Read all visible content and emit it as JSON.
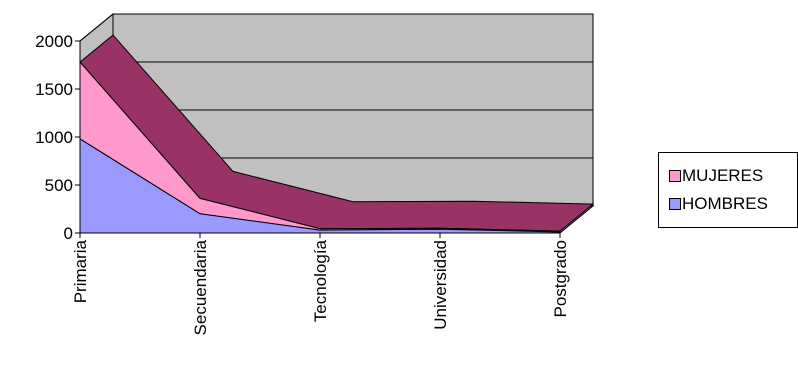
{
  "chart_data": {
    "type": "area",
    "style": "3d-stacked-area",
    "categories": [
      "Primaria",
      "Secuendaria",
      "Tecnología",
      "Universidad",
      "Postgrado"
    ],
    "series": [
      {
        "name": "HOMBRES",
        "values": [
          980,
          200,
          30,
          40,
          10
        ],
        "color": "#9999ff"
      },
      {
        "name": "MUJERES",
        "values": [
          800,
          160,
          15,
          10,
          10
        ],
        "color": "#ff99cc"
      }
    ],
    "ylim": [
      0,
      2000
    ],
    "yticks": [
      0,
      500,
      1000,
      1500,
      2000
    ],
    "ytick_labels": [
      "0",
      "500",
      "1000",
      "1500",
      "2000"
    ],
    "grid": true,
    "legend_position": "right",
    "colors": {
      "wall": "#c0c0c0",
      "floor": "#808080",
      "top_face": "#993366",
      "mujeres": "#ff99cc",
      "hombres": "#9999ff"
    }
  },
  "legend": {
    "items": [
      {
        "label": "MUJERES",
        "color": "#ff99cc"
      },
      {
        "label": "HOMBRES",
        "color": "#9999ff"
      }
    ]
  }
}
